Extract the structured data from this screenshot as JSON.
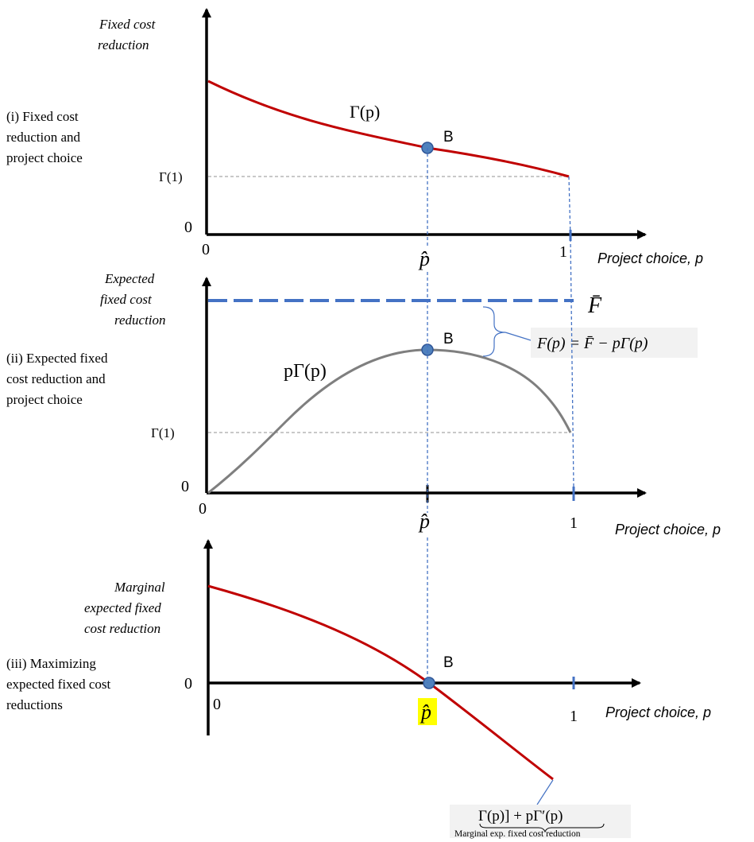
{
  "colors": {
    "axis": "#000000",
    "red_curve": "#c00000",
    "gray_curve": "#7f7f7f",
    "blue": "#4472c4",
    "dashed_gray": "#a6a6a6",
    "point_fill": "#4f81bd",
    "highlight": "#ffff00",
    "annotation_box": "#f2f2f2"
  },
  "panel1": {
    "ylabel": [
      "Fixed cost",
      "reduction"
    ],
    "title": [
      "(i) Fixed cost",
      "reduction and",
      "project choice"
    ],
    "curve_label": "Γ(p)",
    "gamma1_label": "Γ(1)",
    "zero_y": "0",
    "zero_x": "0",
    "point_label": "B",
    "phat": "p̂",
    "one": "1",
    "xlabel": "Project choice, p"
  },
  "panel2": {
    "ylabel": [
      "Expected",
      "fixed cost",
      "reduction"
    ],
    "title": [
      "(ii) Expected fixed",
      "cost reduction and",
      "project choice"
    ],
    "curve_label": "pΓ(p)",
    "fbar_label": "F̄",
    "f_formula": "F(p) = F̄ − pΓ(p)",
    "gamma1_label": "Γ(1)",
    "zero_y": "0",
    "zero_x": "0",
    "point_label": "B",
    "phat": "p̂",
    "one": "1",
    "xlabel": "Project choice, p"
  },
  "panel3": {
    "ylabel": [
      "Marginal",
      "expected fixed",
      "cost reduction"
    ],
    "title": [
      "(iii) Maximizing",
      "expected fixed cost",
      "reductions"
    ],
    "zero_y": "0",
    "zero_x": "0",
    "point_label": "B",
    "phat": "p̂",
    "one": "1",
    "xlabel": "Project choice, p",
    "formula": "Γ(p)]  + pΓ′(p)",
    "formula_caption": "Marginal exp. fixed cost reduction"
  }
}
